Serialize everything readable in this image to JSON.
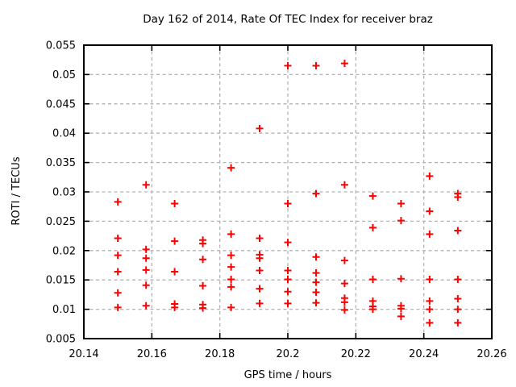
{
  "chart_data": {
    "type": "scatter",
    "title": "Day 162 of 2014, Rate Of TEC Index for receiver braz",
    "xlabel": "GPS time / hours",
    "ylabel": "ROTI / TECUs",
    "xlim": [
      20.14,
      20.26
    ],
    "ylim": [
      0.005,
      0.055
    ],
    "grid": true,
    "legend": false,
    "marker": {
      "shape": "plus",
      "color": "#ff0000"
    },
    "grid_color": "#b3b3b3",
    "xticks": {
      "values": [
        20.14,
        20.16,
        20.18,
        20.2,
        20.22,
        20.24,
        20.26
      ],
      "labels": [
        "20.14",
        "20.16",
        "20.18",
        "20.2",
        "20.22",
        "20.24",
        "20.26"
      ]
    },
    "yticks": {
      "values": [
        0.005,
        0.01,
        0.015,
        0.02,
        0.025,
        0.03,
        0.035,
        0.04,
        0.045,
        0.05,
        0.055
      ],
      "labels": [
        "0.005",
        "0.01",
        "0.015",
        "0.02",
        "0.025",
        "0.03",
        "0.035",
        "0.04",
        "0.045",
        "0.05",
        "0.055"
      ]
    },
    "points": [
      [
        20.15,
        0.0283
      ],
      [
        20.15,
        0.0221
      ],
      [
        20.15,
        0.0192
      ],
      [
        20.15,
        0.0164
      ],
      [
        20.15,
        0.0128
      ],
      [
        20.15,
        0.0103
      ],
      [
        20.1583,
        0.0312
      ],
      [
        20.1583,
        0.0202
      ],
      [
        20.1583,
        0.0187
      ],
      [
        20.1583,
        0.0167
      ],
      [
        20.1583,
        0.0141
      ],
      [
        20.1583,
        0.0106
      ],
      [
        20.1667,
        0.028
      ],
      [
        20.1667,
        0.0216
      ],
      [
        20.1667,
        0.0164
      ],
      [
        20.1667,
        0.0109
      ],
      [
        20.1667,
        0.0103
      ],
      [
        20.175,
        0.0218
      ],
      [
        20.175,
        0.0212
      ],
      [
        20.175,
        0.0185
      ],
      [
        20.175,
        0.014
      ],
      [
        20.175,
        0.0108
      ],
      [
        20.175,
        0.0102
      ],
      [
        20.1833,
        0.0341
      ],
      [
        20.1833,
        0.0228
      ],
      [
        20.1833,
        0.0192
      ],
      [
        20.1833,
        0.0172
      ],
      [
        20.1833,
        0.0151
      ],
      [
        20.1833,
        0.0138
      ],
      [
        20.1833,
        0.0103
      ],
      [
        20.1917,
        0.0408
      ],
      [
        20.1917,
        0.0221
      ],
      [
        20.1917,
        0.0193
      ],
      [
        20.1917,
        0.0187
      ],
      [
        20.1917,
        0.0166
      ],
      [
        20.1917,
        0.0135
      ],
      [
        20.1917,
        0.011
      ],
      [
        20.2,
        0.0515
      ],
      [
        20.2,
        0.028
      ],
      [
        20.2,
        0.0214
      ],
      [
        20.2,
        0.0166
      ],
      [
        20.2,
        0.0151
      ],
      [
        20.2,
        0.013
      ],
      [
        20.2,
        0.011
      ],
      [
        20.2083,
        0.0515
      ],
      [
        20.2083,
        0.0297
      ],
      [
        20.2083,
        0.0189
      ],
      [
        20.2083,
        0.0162
      ],
      [
        20.2083,
        0.0146
      ],
      [
        20.2083,
        0.0129
      ],
      [
        20.2083,
        0.0111
      ],
      [
        20.2167,
        0.0519
      ],
      [
        20.2167,
        0.0312
      ],
      [
        20.2167,
        0.0183
      ],
      [
        20.2167,
        0.0144
      ],
      [
        20.2167,
        0.0119
      ],
      [
        20.2167,
        0.0112
      ],
      [
        20.2167,
        0.0099
      ],
      [
        20.225,
        0.0293
      ],
      [
        20.225,
        0.0239
      ],
      [
        20.225,
        0.0151
      ],
      [
        20.225,
        0.0114
      ],
      [
        20.225,
        0.0105
      ],
      [
        20.225,
        0.01
      ],
      [
        20.2333,
        0.028
      ],
      [
        20.2333,
        0.0251
      ],
      [
        20.2333,
        0.0152
      ],
      [
        20.2333,
        0.0106
      ],
      [
        20.2333,
        0.0101
      ],
      [
        20.2333,
        0.0088
      ],
      [
        20.2417,
        0.0327
      ],
      [
        20.2417,
        0.0267
      ],
      [
        20.2417,
        0.0228
      ],
      [
        20.2417,
        0.0151
      ],
      [
        20.2417,
        0.0114
      ],
      [
        20.2417,
        0.01
      ],
      [
        20.2417,
        0.0077
      ],
      [
        20.25,
        0.0297
      ],
      [
        20.25,
        0.0291
      ],
      [
        20.25,
        0.0234
      ],
      [
        20.25,
        0.0151
      ],
      [
        20.25,
        0.0118
      ],
      [
        20.25,
        0.01
      ],
      [
        20.25,
        0.0077
      ]
    ]
  }
}
